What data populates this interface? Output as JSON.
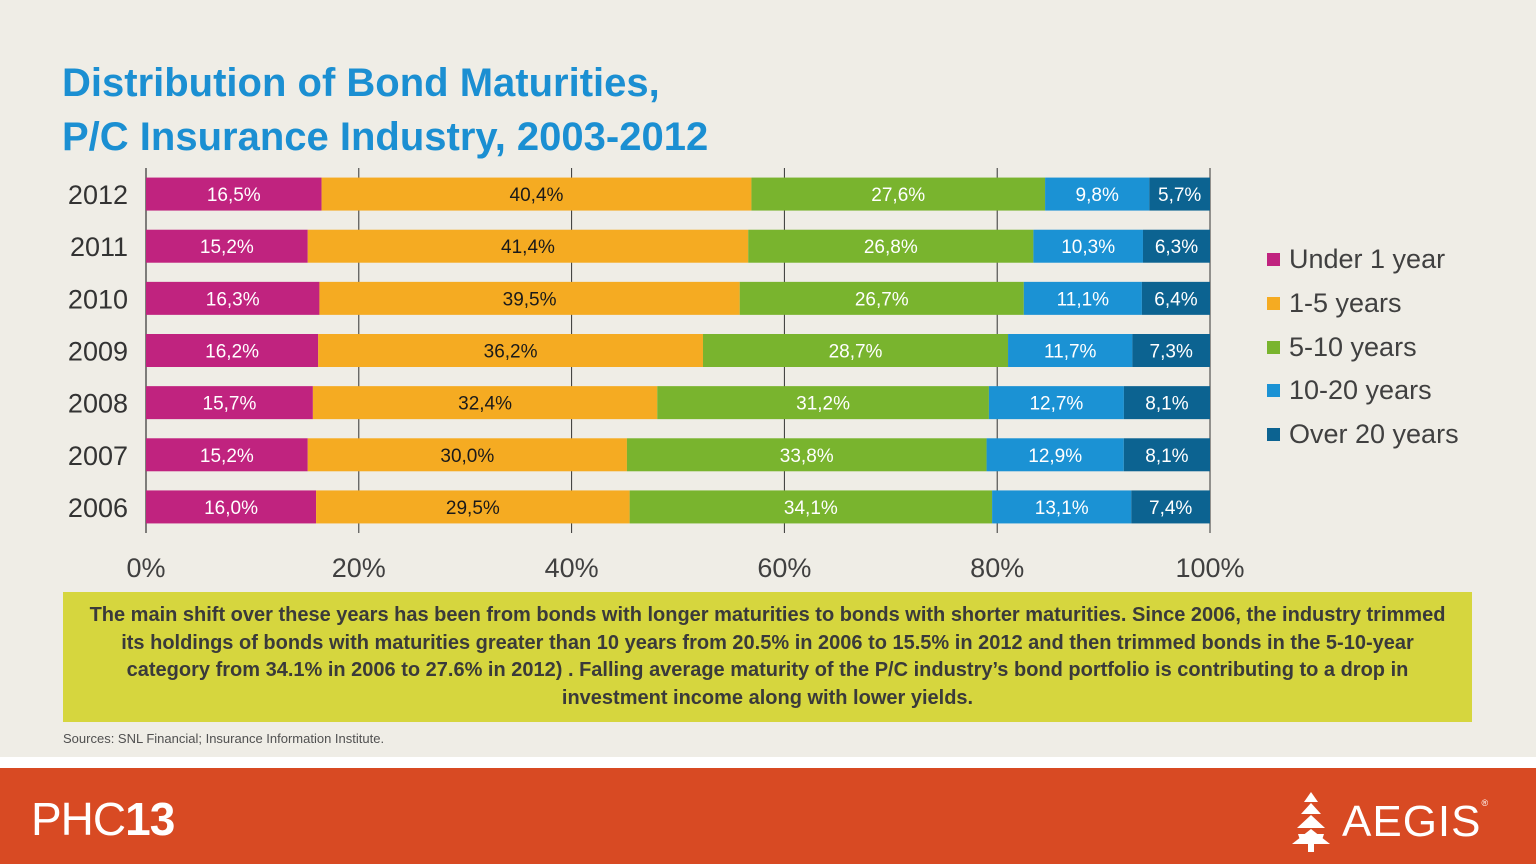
{
  "title": {
    "line1": "Distribution of Bond Maturities,",
    "line2": "P/C Insurance Industry, 2003-2012"
  },
  "chart_data": {
    "type": "bar",
    "orientation": "horizontal",
    "stacked": "percent",
    "categories": [
      "2012",
      "2011",
      "2010",
      "2009",
      "2008",
      "2007",
      "2006"
    ],
    "series": [
      {
        "name": "Under 1 year",
        "color": "#c0237f",
        "label_color": "#ffffff",
        "values": [
          16.5,
          15.2,
          16.3,
          16.2,
          15.7,
          15.2,
          16.0
        ],
        "labels": [
          "16,5%",
          "15,2%",
          "16,3%",
          "16,2%",
          "15,7%",
          "15,2%",
          "16,0%"
        ]
      },
      {
        "name": "1-5 years",
        "color": "#f5ab22",
        "label_color": "#1a1a1a",
        "values": [
          40.4,
          41.4,
          39.5,
          36.2,
          32.4,
          30.0,
          29.5
        ],
        "labels": [
          "40,4%",
          "41,4%",
          "39,5%",
          "36,2%",
          "32,4%",
          "30,0%",
          "29,5%"
        ]
      },
      {
        "name": "5-10 years",
        "color": "#79b42e",
        "label_color": "#ffffff",
        "values": [
          27.6,
          26.8,
          26.7,
          28.7,
          31.2,
          33.8,
          34.1
        ],
        "labels": [
          "27,6%",
          "26,8%",
          "26,7%",
          "28,7%",
          "31,2%",
          "33,8%",
          "34,1%"
        ]
      },
      {
        "name": "10-20 years",
        "color": "#1b92d4",
        "label_color": "#ffffff",
        "values": [
          9.8,
          10.3,
          11.1,
          11.7,
          12.7,
          12.9,
          13.1
        ],
        "labels": [
          "9,8%",
          "10,3%",
          "11,1%",
          "11,7%",
          "12,7%",
          "12,9%",
          "13,1%"
        ]
      },
      {
        "name": "Over 20 years",
        "color": "#0c6391",
        "label_color": "#ffffff",
        "values": [
          5.7,
          6.3,
          6.4,
          7.3,
          8.1,
          8.1,
          7.4
        ],
        "labels": [
          "5,7%",
          "6,3%",
          "6,4%",
          "7,3%",
          "8,1%",
          "8,1%",
          "7,4%"
        ]
      }
    ],
    "xlim": [
      0,
      100
    ],
    "xticks": [
      "0%",
      "20%",
      "40%",
      "60%",
      "80%",
      "100%"
    ],
    "grid": "vertical",
    "legend": "right"
  },
  "note": "The main shift over these years has been from bonds with longer maturities to bonds with shorter maturities.  Since 2006, the industry trimmed its holdings of bonds with maturities greater than 10 years from 20.5% in 2006 to 15.5% in 2012 and then trimmed bonds in the 5-10-year category from 34.1% in 2006 to 27.6% in 2012) . Falling average maturity of the P/C industry’s bond portfolio is contributing to a drop in investment income along with lower yields.",
  "source": "Sources: SNL Financial; Insurance Information Institute.",
  "footer": {
    "left_light": "PHC",
    "left_bold": "13",
    "right_word": "AEGIS",
    "right_reg": "®",
    "background": "#d84a23"
  }
}
